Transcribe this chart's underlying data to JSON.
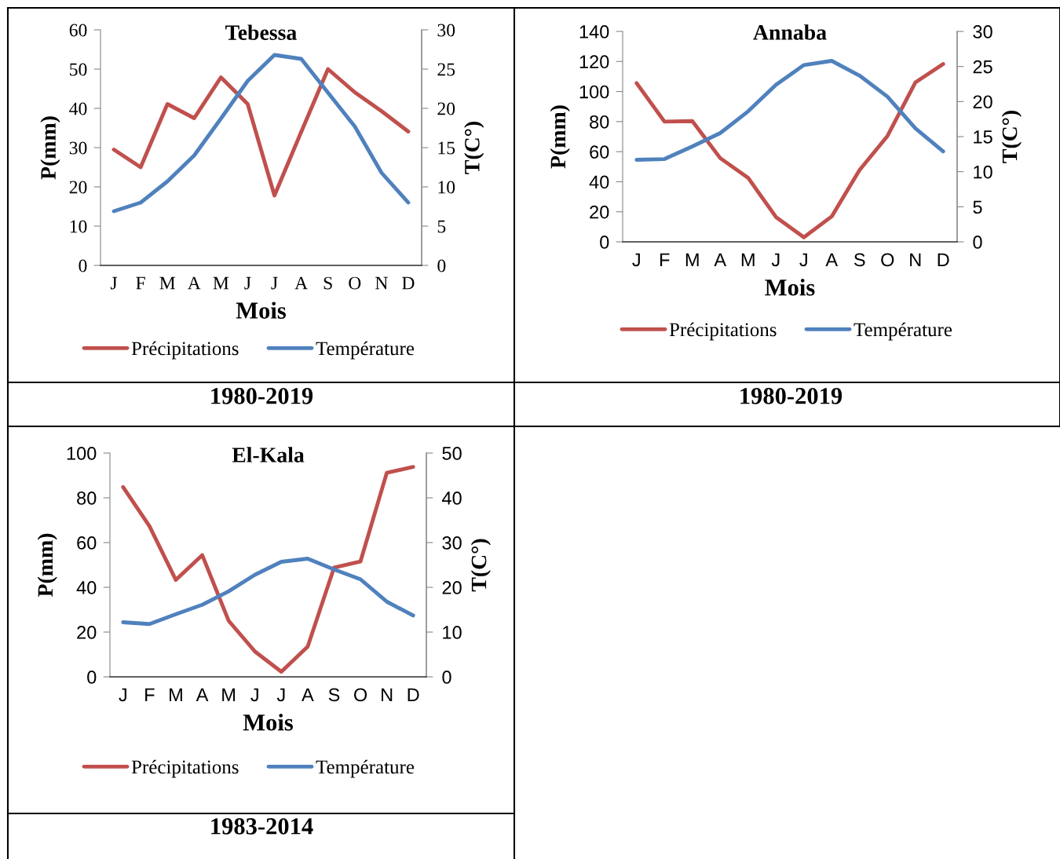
{
  "chart_data": [
    {
      "type": "line",
      "title": "Tebessa",
      "xlabel": "Mois",
      "ylabel": "P(mm)",
      "y2label": "T(C°)",
      "categories": [
        "J",
        "F",
        "M",
        "A",
        "M",
        "J",
        "J",
        "A",
        "S",
        "O",
        "N",
        "D"
      ],
      "series": [
        {
          "name": "Précipitations",
          "color": "#c0504d",
          "values": [
            29.5,
            25,
            41.1,
            37.5,
            47.9,
            41.1,
            17.8,
            34,
            50,
            44.1,
            39.3,
            34.1
          ]
        },
        {
          "name": "Température",
          "color": "#4f81bd",
          "axis": "y2",
          "values": [
            6.9,
            8.0,
            10.7,
            14,
            18.7,
            23.5,
            26.8,
            26.3,
            22,
            17.7,
            11.8,
            8.0
          ]
        }
      ],
      "ylim": [
        0,
        60
      ],
      "yticks": [
        0,
        10,
        20,
        30,
        40,
        50,
        60
      ],
      "y2lim": [
        0,
        30
      ],
      "y2ticks": [
        0,
        5,
        10,
        15,
        20,
        25,
        30
      ],
      "grid": false,
      "legend": "bottom",
      "marker": "none",
      "line_style": "solid",
      "annotations": [
        "1980-2019"
      ]
    },
    {
      "type": "line",
      "title": "Annaba",
      "xlabel": "Mois",
      "ylabel": "P(mm)",
      "y2label": "T(C°)",
      "categories": [
        "J",
        "F",
        "M",
        "A",
        "M",
        "J",
        "J",
        "A",
        "S",
        "O",
        "N",
        "D"
      ],
      "series": [
        {
          "name": "Précipitations",
          "color": "#c0504d",
          "values": [
            105.6,
            80,
            80.3,
            55.7,
            42.6,
            16.5,
            3,
            16.9,
            47.8,
            70.4,
            106,
            118.3
          ]
        },
        {
          "name": "Température",
          "color": "#4f81bd",
          "axis": "y2",
          "values": [
            11.7,
            11.8,
            13.6,
            15.5,
            18.6,
            22.4,
            25.2,
            25.8,
            23.7,
            20.7,
            16.2,
            12.9
          ]
        }
      ],
      "ylim": [
        0,
        140
      ],
      "yticks": [
        0,
        20,
        40,
        60,
        80,
        100,
        120,
        140
      ],
      "y2lim": [
        0,
        30
      ],
      "y2ticks": [
        0,
        5,
        10,
        15,
        20,
        25,
        30
      ],
      "grid": false,
      "legend": "bottom",
      "marker": "none",
      "line_style": "solid",
      "annotations": [
        "1980-2019"
      ]
    },
    {
      "type": "line",
      "title": "El-Kala",
      "xlabel": "Mois",
      "ylabel": "P(mm)",
      "y2label": "T(C°)",
      "categories": [
        "J",
        "F",
        "M",
        "A",
        "M",
        "J",
        "J",
        "A",
        "S",
        "O",
        "N",
        "D"
      ],
      "series": [
        {
          "name": "Précipitations",
          "color": "#c0504d",
          "values": [
            84.8,
            67.3,
            43.3,
            54.4,
            25.1,
            11.3,
            2.3,
            13.5,
            48.8,
            51.5,
            91.2,
            93.8
          ]
        },
        {
          "name": "Température",
          "color": "#4f81bd",
          "axis": "y2",
          "values": [
            12.2,
            11.8,
            14,
            16.1,
            19.1,
            22.8,
            25.7,
            26.4,
            24,
            21.8,
            16.8,
            13.7
          ]
        }
      ],
      "ylim": [
        0,
        100
      ],
      "yticks": [
        0,
        20,
        40,
        60,
        80,
        100
      ],
      "y2lim": [
        0,
        50
      ],
      "y2ticks": [
        0,
        10,
        20,
        30,
        40,
        50
      ],
      "grid": false,
      "legend": "bottom",
      "marker": "none",
      "line_style": "solid",
      "annotations": [
        "1983-2014"
      ]
    }
  ]
}
